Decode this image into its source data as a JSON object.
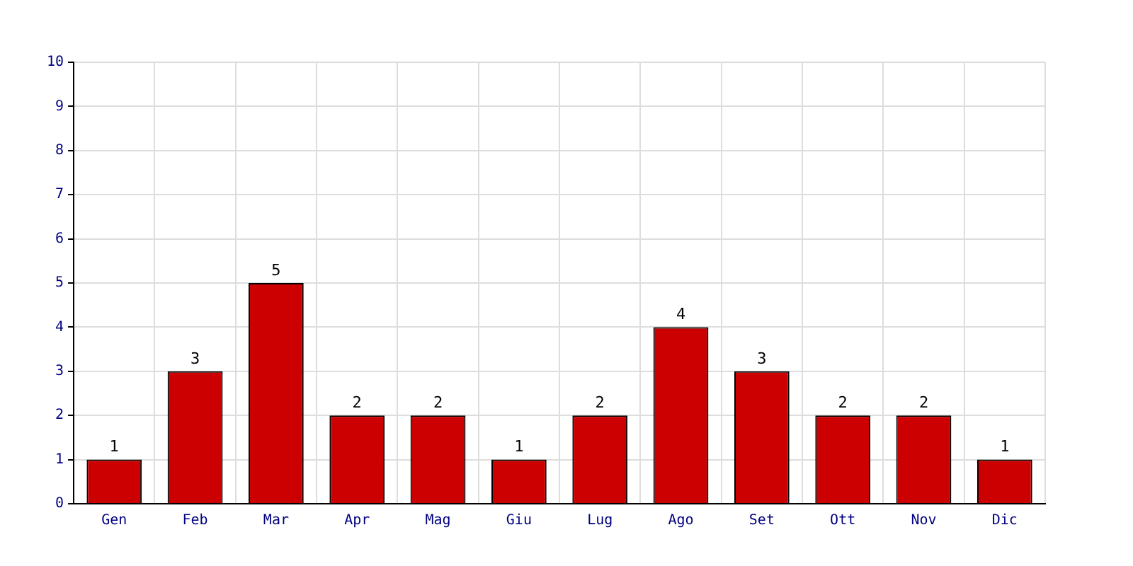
{
  "chart_data": {
    "type": "bar",
    "categories": [
      "Gen",
      "Feb",
      "Mar",
      "Apr",
      "Mag",
      "Giu",
      "Lug",
      "Ago",
      "Set",
      "Ott",
      "Nov",
      "Dic"
    ],
    "values": [
      1,
      3,
      5,
      2,
      2,
      1,
      2,
      4,
      3,
      2,
      2,
      1
    ],
    "color": "#cc0000",
    "ylim": [
      0,
      10
    ],
    "yticks": [
      0,
      1,
      2,
      3,
      4,
      5,
      6,
      7,
      8,
      9,
      10
    ],
    "grid": true,
    "data_labels": true
  }
}
